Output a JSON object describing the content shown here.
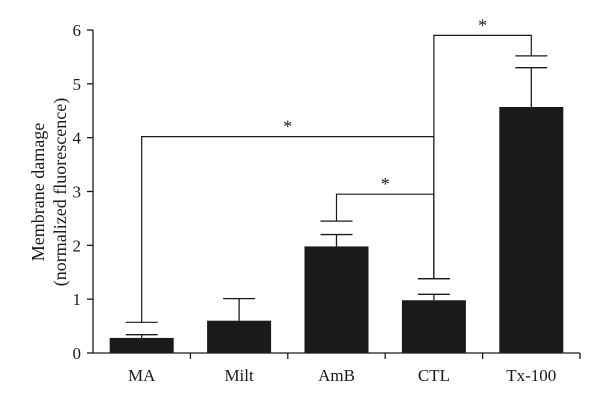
{
  "chart_data": {
    "type": "bar",
    "categories": [
      "MA",
      "Milt",
      "AmB",
      "CTL",
      "Tx-100"
    ],
    "values": [
      0.28,
      0.6,
      1.98,
      0.98,
      4.57
    ],
    "error_upper": [
      0.34,
      1.01,
      2.2,
      1.09,
      5.3
    ],
    "ylabel_line1": "Membrane damage",
    "ylabel_line2": "(normalized fluorescence)",
    "xlabel": "",
    "ylim": [
      0,
      6
    ],
    "yticks": [
      0,
      1,
      2,
      3,
      4,
      5,
      6
    ],
    "bar_color": "#1a1a1a",
    "significance": [
      {
        "from": "MA",
        "to": "CTL",
        "y": 4.02,
        "left_drop": 0.57,
        "right_drop": 1.38,
        "label": "*"
      },
      {
        "from": "AmB",
        "to": "CTL",
        "y": 2.95,
        "left_drop": 2.45,
        "right_drop": 1.38,
        "label": "*"
      },
      {
        "from": "CTL",
        "to": "Tx-100",
        "y": 5.9,
        "left_drop": 1.38,
        "right_drop": 5.52,
        "label": "*"
      }
    ]
  }
}
